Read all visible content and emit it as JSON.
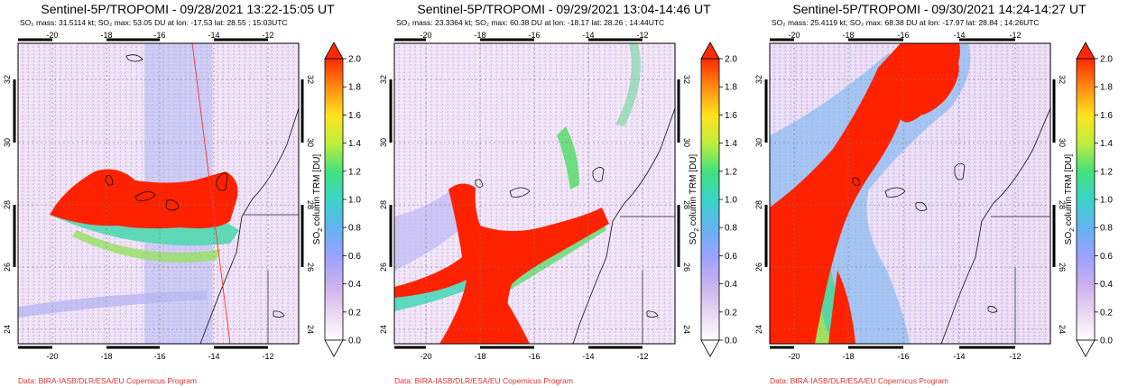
{
  "panels": [
    {
      "title": "Sentinel-5P/TROPOMI - 09/28/2021 13:22-15:05 UT",
      "stats": "SO₂ mass: 31.5114 kt; SO₂ max: 53.05 DU at lon: -17.53 lat: 28.55 ; 15:03UTC",
      "source": "Data: BIRA-IASB/DLR/ESA/EU Copernicus Program"
    },
    {
      "title": "Sentinel-5P/TROPOMI - 09/29/2021 13:04-14:46 UT",
      "stats": "SO₂ mass: 23.3364 kt; SO₂ max: 60.38 DU at lon: -18.17 lat: 28.26 ; 14:44UTC",
      "source": "Data: BIRA-IASB/DLR/ESA/EU Copernicus Program"
    },
    {
      "title": "Sentinel-5P/TROPOMI - 09/30/2021 14:24-14:27 UT",
      "stats": "SO₂ mass: 25.4119 kt; SO₂ max: 68.38 DU at lon: -17.97 lat: 28.84 ; 14:26UTC",
      "source": "Data: BIRA-IASB/DLR/ESA/EU Copernicus Program"
    }
  ],
  "map_axes": {
    "lon_ticks": [
      "-20",
      "-18",
      "-16",
      "-14",
      "-12"
    ],
    "lat_ticks": [
      "24",
      "26",
      "28",
      "30",
      "32"
    ]
  },
  "colorbar": {
    "title_prefix": "SO",
    "title_sub": "2",
    "title_suffix": " column TRM [DU]",
    "ticks": [
      "0.0",
      "0.2",
      "0.4",
      "0.6",
      "0.8",
      "1.0",
      "1.2",
      "1.4",
      "1.6",
      "1.8",
      "2.0"
    ],
    "colors": [
      "#ffffff",
      "#e8d6f2",
      "#c8b0ee",
      "#9aa2ff",
      "#63b3f0",
      "#39d5c8",
      "#45e07a",
      "#bfee3c",
      "#ffe21e",
      "#ff8a12",
      "#ff2a00"
    ]
  }
}
